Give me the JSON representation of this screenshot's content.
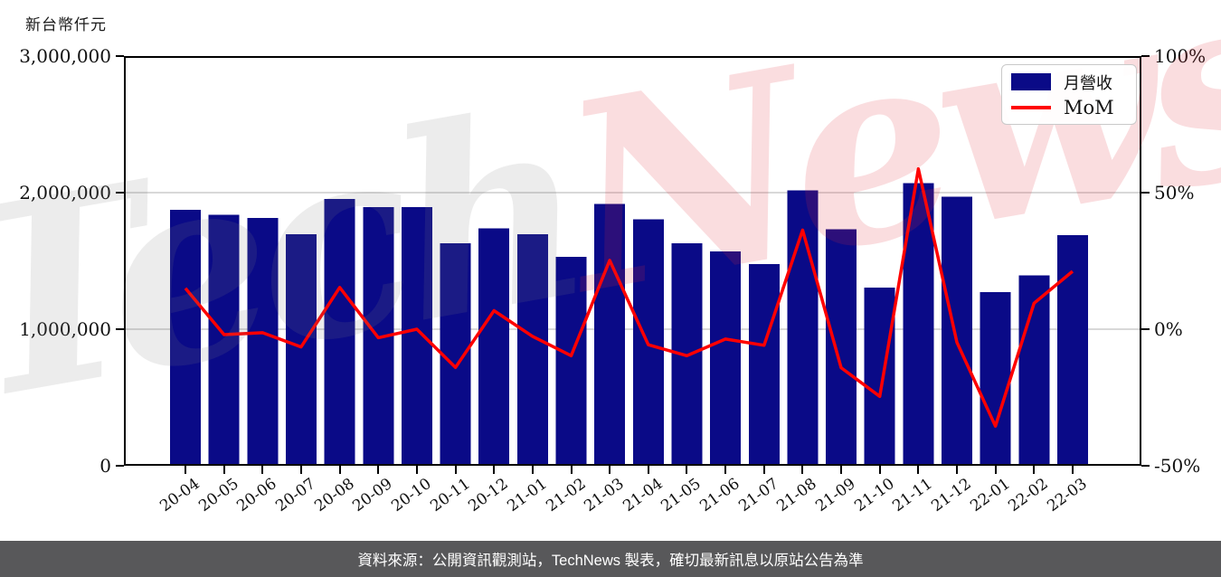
{
  "header": {
    "y_axis_title": "新台幣仟元"
  },
  "legend": {
    "items": [
      {
        "label": "月營收",
        "type": "bar",
        "color": "#0a0a87"
      },
      {
        "label": "MoM",
        "type": "line",
        "color": "#ff0000"
      }
    ]
  },
  "watermark": {
    "part1": "Tech",
    "part2": "News"
  },
  "footer": {
    "source_text": "資料來源：公開資訊觀測站，TechNews 製表，確切最新訊息以原站公告為準"
  },
  "chart_data": {
    "type": "bar",
    "title": "",
    "categories": [
      "20-04",
      "20-05",
      "20-06",
      "20-07",
      "20-08",
      "20-09",
      "20-10",
      "20-11",
      "20-12",
      "21-01",
      "21-02",
      "21-03",
      "21-04",
      "21-05",
      "21-06",
      "21-07",
      "21-08",
      "21-09",
      "21-10",
      "21-11",
      "21-12",
      "22-01",
      "22-02",
      "22-03"
    ],
    "series": [
      {
        "name": "月營收",
        "type": "bar",
        "axis": "left",
        "color": "#0a0a87",
        "values": [
          1874000,
          1837000,
          1813000,
          1695000,
          1954000,
          1894000,
          1894000,
          1629000,
          1740000,
          1695000,
          1530000,
          1916000,
          1806000,
          1630000,
          1571000,
          1478000,
          2015000,
          1731000,
          1305000,
          2071000,
          1971000,
          1272000,
          1393000,
          1689000
        ]
      },
      {
        "name": "MoM",
        "type": "line",
        "axis": "right",
        "color": "#ff0000",
        "unit": "%",
        "values": [
          15.0,
          -2.0,
          -1.3,
          -6.5,
          15.3,
          -3.1,
          0.0,
          -14.0,
          6.8,
          -2.6,
          -9.7,
          25.2,
          -5.7,
          -9.7,
          -3.6,
          -5.9,
          36.3,
          -14.1,
          -24.6,
          58.7,
          -4.8,
          -35.5,
          9.5,
          21.2
        ]
      }
    ],
    "left_axis": {
      "title": "新台幣仟元",
      "tick_labels": [
        "0",
        "1,000,000",
        "2,000,000",
        "3,000,000"
      ],
      "tick_values": [
        0,
        1000000,
        2000000,
        3000000
      ],
      "range": [
        0,
        3000000
      ]
    },
    "right_axis": {
      "tick_labels": [
        "-50%",
        "0%",
        "50%",
        "100%"
      ],
      "tick_values": [
        -50,
        0,
        50,
        100
      ],
      "range": [
        -50,
        100
      ]
    },
    "grid": "horizontal",
    "gridline_color": "#d8d8d8",
    "legend_position": "top-right"
  }
}
